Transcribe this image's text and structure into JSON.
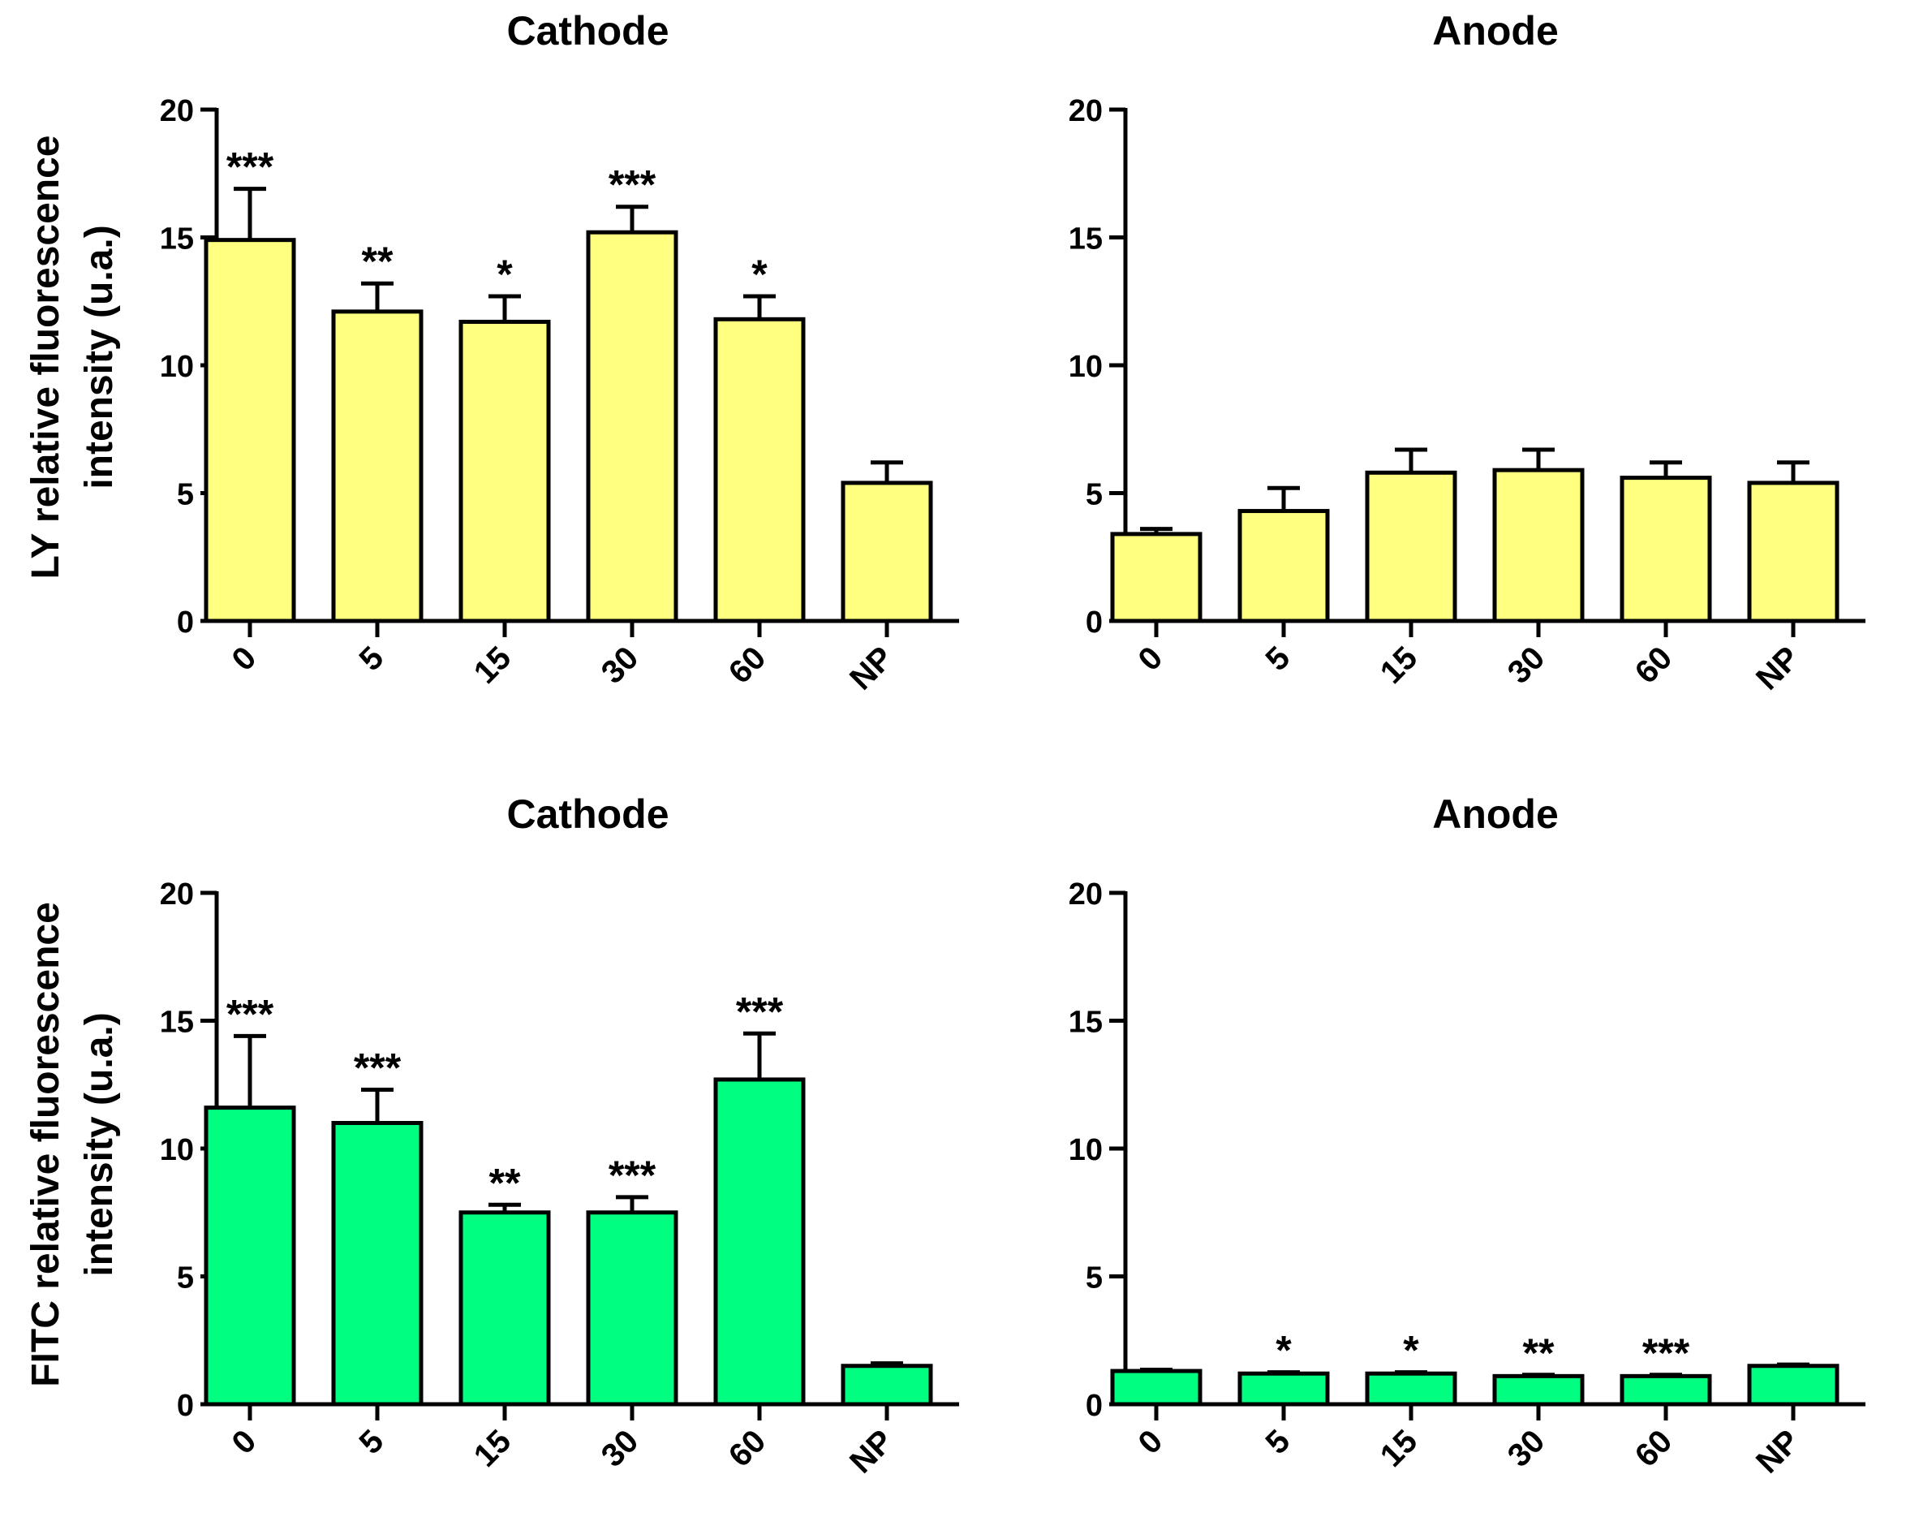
{
  "figure": {
    "row_ylabels": [
      {
        "line1": "LY relative fluorescence",
        "line2": "intensity (u.a.)"
      },
      {
        "line1": "FITC relative fluorescence",
        "line2": "intensity (u.a.)"
      }
    ]
  },
  "colors": {
    "yellow_fill": "#FFFF80",
    "green_fill": "#00FF80",
    "stroke": "#000000"
  },
  "chart_data": [
    {
      "type": "bar",
      "title": "Cathode",
      "categories": [
        "0",
        "5",
        "15",
        "30",
        "60",
        "NP"
      ],
      "values": [
        14.9,
        12.1,
        11.7,
        15.2,
        11.8,
        5.4
      ],
      "errors": [
        2.0,
        1.1,
        1.0,
        1.0,
        0.9,
        0.8
      ],
      "significance": [
        "***",
        "**",
        "*",
        "***",
        "*",
        ""
      ],
      "ylim": [
        0,
        20
      ],
      "yticks": [
        0,
        5,
        10,
        15,
        20
      ],
      "color": "#FFFF80",
      "row": 0,
      "col": 0
    },
    {
      "type": "bar",
      "title": "Anode",
      "categories": [
        "0",
        "5",
        "15",
        "30",
        "60",
        "NP"
      ],
      "values": [
        3.4,
        4.3,
        5.8,
        5.9,
        5.6,
        5.4
      ],
      "errors": [
        0.2,
        0.9,
        0.9,
        0.8,
        0.6,
        0.8
      ],
      "significance": [
        "",
        "",
        "",
        "",
        "",
        ""
      ],
      "ylim": [
        0,
        20
      ],
      "yticks": [
        0,
        5,
        10,
        15,
        20
      ],
      "color": "#FFFF80",
      "row": 0,
      "col": 1
    },
    {
      "type": "bar",
      "title": "Cathode",
      "categories": [
        "0",
        "5",
        "15",
        "30",
        "60",
        "NP"
      ],
      "values": [
        11.6,
        11.0,
        7.5,
        7.5,
        12.7,
        1.5
      ],
      "errors": [
        2.8,
        1.3,
        0.3,
        0.6,
        1.8,
        0.1
      ],
      "significance": [
        "***",
        "***",
        "**",
        "***",
        "***",
        ""
      ],
      "ylim": [
        0,
        20
      ],
      "yticks": [
        0,
        5,
        10,
        15,
        20
      ],
      "color": "#00FF80",
      "row": 1,
      "col": 0
    },
    {
      "type": "bar",
      "title": "Anode",
      "categories": [
        "0",
        "5",
        "15",
        "30",
        "60",
        "NP"
      ],
      "values": [
        1.3,
        1.2,
        1.2,
        1.1,
        1.1,
        1.5
      ],
      "errors": [
        0.05,
        0.05,
        0.05,
        0.05,
        0.05,
        0.05
      ],
      "significance": [
        "",
        "*",
        "*",
        "**",
        "***",
        ""
      ],
      "ylim": [
        0,
        20
      ],
      "yticks": [
        0,
        5,
        10,
        15,
        20
      ],
      "color": "#00FF80",
      "row": 1,
      "col": 1
    }
  ]
}
